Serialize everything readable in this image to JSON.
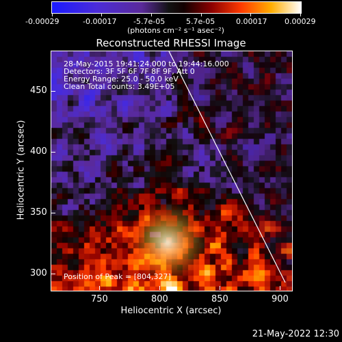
{
  "colorbar": {
    "tick_labels": [
      "-0.00029",
      "-0.00017",
      "-5.7e-05",
      "5.7e-05",
      "0.00017",
      "0.00029"
    ],
    "units": "(photons cm⁻² s⁻¹ asec⁻²)"
  },
  "plot": {
    "title": "Reconstructed RHESSI Image",
    "annotations": [
      "28-May-2015 19:41:24.000 to 19:44:16.000",
      "Detectors: 3F 5F 6F 7F 8F 9F, Att 0",
      "Energy Range: 25.0 - 50.0 keV",
      "Clean     Total counts: 3.49E+05"
    ],
    "peak_label": "Position of Peak =  [804,327]",
    "xlabel": "Heliocentric X (arcsec)",
    "ylabel": "Heliocentric Y (arcsec)",
    "x_ticks": [
      "750",
      "800",
      "850",
      "900"
    ],
    "y_ticks": [
      "300",
      "350",
      "400",
      "450"
    ]
  },
  "timestamp": "21-May-2022 12:30"
}
